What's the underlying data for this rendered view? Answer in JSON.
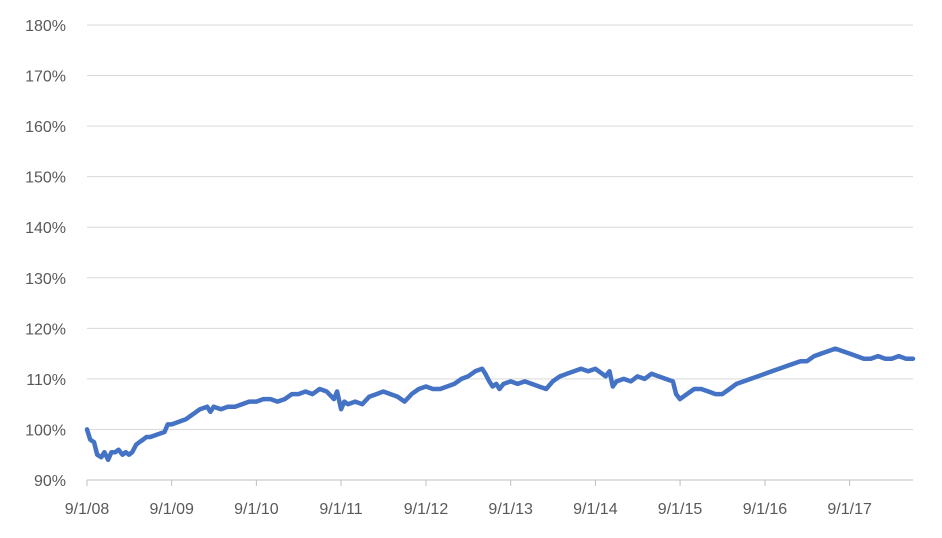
{
  "chart_data": {
    "type": "line",
    "title": "",
    "xlabel": "",
    "ylabel": "",
    "ylim": [
      90,
      180
    ],
    "grid": true,
    "legend": "none",
    "series_color": "#4472c4",
    "y_ticks": [
      "90%",
      "100%",
      "110%",
      "120%",
      "130%",
      "140%",
      "150%",
      "160%",
      "170%",
      "180%"
    ],
    "x_ticks": [
      "9/1/08",
      "9/1/09",
      "9/1/10",
      "9/1/11",
      "9/1/12",
      "9/1/13",
      "9/1/14",
      "9/1/15",
      "9/1/16",
      "9/1/17"
    ],
    "x_tick_dates": [
      "2008-09-01",
      "2009-09-01",
      "2010-09-01",
      "2011-09-01",
      "2012-09-01",
      "2013-09-01",
      "2014-09-01",
      "2015-09-01",
      "2016-09-01",
      "2017-09-01"
    ],
    "x_end": "2018-06-01",
    "series": [
      {
        "points": [
          [
            "2008-09-01",
            100.0
          ],
          [
            "2008-09-15",
            98.0
          ],
          [
            "2008-10-01",
            97.5
          ],
          [
            "2008-10-15",
            95.0
          ],
          [
            "2008-11-01",
            94.5
          ],
          [
            "2008-11-15",
            95.5
          ],
          [
            "2008-12-01",
            94.0
          ],
          [
            "2008-12-15",
            95.5
          ],
          [
            "2009-01-01",
            95.5
          ],
          [
            "2009-01-15",
            96.0
          ],
          [
            "2009-02-01",
            95.0
          ],
          [
            "2009-02-15",
            95.5
          ],
          [
            "2009-03-01",
            95.0
          ],
          [
            "2009-03-15",
            95.5
          ],
          [
            "2009-04-01",
            97.0
          ],
          [
            "2009-04-15",
            97.5
          ],
          [
            "2009-05-01",
            98.0
          ],
          [
            "2009-05-15",
            98.5
          ],
          [
            "2009-06-01",
            98.5
          ],
          [
            "2009-07-01",
            99.0
          ],
          [
            "2009-08-01",
            99.5
          ],
          [
            "2009-08-15",
            101.0
          ],
          [
            "2009-09-01",
            101.0
          ],
          [
            "2009-10-01",
            101.5
          ],
          [
            "2009-11-01",
            102.0
          ],
          [
            "2009-12-01",
            103.0
          ],
          [
            "2010-01-01",
            104.0
          ],
          [
            "2010-02-01",
            104.5
          ],
          [
            "2010-02-15",
            103.5
          ],
          [
            "2010-03-01",
            104.5
          ],
          [
            "2010-04-01",
            104.0
          ],
          [
            "2010-05-01",
            104.5
          ],
          [
            "2010-06-01",
            104.5
          ],
          [
            "2010-07-01",
            105.0
          ],
          [
            "2010-08-01",
            105.5
          ],
          [
            "2010-09-01",
            105.5
          ],
          [
            "2010-10-01",
            106.0
          ],
          [
            "2010-11-01",
            106.0
          ],
          [
            "2010-12-01",
            105.5
          ],
          [
            "2011-01-01",
            106.0
          ],
          [
            "2011-02-01",
            107.0
          ],
          [
            "2011-03-01",
            107.0
          ],
          [
            "2011-04-01",
            107.5
          ],
          [
            "2011-05-01",
            107.0
          ],
          [
            "2011-06-01",
            108.0
          ],
          [
            "2011-07-01",
            107.5
          ],
          [
            "2011-08-01",
            106.0
          ],
          [
            "2011-08-15",
            107.5
          ],
          [
            "2011-09-01",
            104.0
          ],
          [
            "2011-09-15",
            105.5
          ],
          [
            "2011-10-01",
            105.0
          ],
          [
            "2011-11-01",
            105.5
          ],
          [
            "2011-12-01",
            105.0
          ],
          [
            "2012-01-01",
            106.5
          ],
          [
            "2012-02-01",
            107.0
          ],
          [
            "2012-03-01",
            107.5
          ],
          [
            "2012-04-01",
            107.0
          ],
          [
            "2012-05-01",
            106.5
          ],
          [
            "2012-06-01",
            105.5
          ],
          [
            "2012-07-01",
            107.0
          ],
          [
            "2012-08-01",
            108.0
          ],
          [
            "2012-09-01",
            108.5
          ],
          [
            "2012-10-01",
            108.0
          ],
          [
            "2012-11-01",
            108.0
          ],
          [
            "2012-12-01",
            108.5
          ],
          [
            "2013-01-01",
            109.0
          ],
          [
            "2013-02-01",
            110.0
          ],
          [
            "2013-03-01",
            110.5
          ],
          [
            "2013-04-01",
            111.5
          ],
          [
            "2013-05-01",
            112.0
          ],
          [
            "2013-05-15",
            111.0
          ],
          [
            "2013-06-01",
            109.5
          ],
          [
            "2013-06-15",
            108.5
          ],
          [
            "2013-07-01",
            109.0
          ],
          [
            "2013-07-15",
            108.0
          ],
          [
            "2013-08-01",
            109.0
          ],
          [
            "2013-09-01",
            109.5
          ],
          [
            "2013-10-01",
            109.0
          ],
          [
            "2013-11-01",
            109.5
          ],
          [
            "2013-12-01",
            109.0
          ],
          [
            "2014-01-01",
            108.5
          ],
          [
            "2014-02-01",
            108.0
          ],
          [
            "2014-03-01",
            109.5
          ],
          [
            "2014-04-01",
            110.5
          ],
          [
            "2014-05-01",
            111.0
          ],
          [
            "2014-06-01",
            111.5
          ],
          [
            "2014-07-01",
            112.0
          ],
          [
            "2014-08-01",
            111.5
          ],
          [
            "2014-09-01",
            112.0
          ],
          [
            "2014-10-01",
            111.0
          ],
          [
            "2014-10-15",
            110.5
          ],
          [
            "2014-11-01",
            111.5
          ],
          [
            "2014-11-15",
            108.5
          ],
          [
            "2014-12-01",
            109.5
          ],
          [
            "2015-01-01",
            110.0
          ],
          [
            "2015-02-01",
            109.5
          ],
          [
            "2015-03-01",
            110.5
          ],
          [
            "2015-04-01",
            110.0
          ],
          [
            "2015-05-01",
            111.0
          ],
          [
            "2015-06-01",
            110.5
          ],
          [
            "2015-07-01",
            110.0
          ],
          [
            "2015-08-01",
            109.5
          ],
          [
            "2015-08-15",
            107.0
          ],
          [
            "2015-09-01",
            106.0
          ],
          [
            "2015-10-01",
            107.0
          ],
          [
            "2015-11-01",
            108.0
          ],
          [
            "2015-12-01",
            108.0
          ],
          [
            "2016-01-01",
            107.5
          ],
          [
            "2016-02-01",
            107.0
          ],
          [
            "2016-03-01",
            107.0
          ],
          [
            "2016-04-01",
            108.0
          ],
          [
            "2016-05-01",
            109.0
          ],
          [
            "2016-06-01",
            109.5
          ],
          [
            "2016-07-01",
            110.0
          ],
          [
            "2016-08-01",
            110.5
          ],
          [
            "2016-09-01",
            111.0
          ],
          [
            "2016-10-01",
            111.5
          ],
          [
            "2016-11-01",
            112.0
          ],
          [
            "2016-12-01",
            112.5
          ],
          [
            "2017-01-01",
            113.0
          ],
          [
            "2017-02-01",
            113.5
          ],
          [
            "2017-03-01",
            113.5
          ],
          [
            "2017-04-01",
            114.5
          ],
          [
            "2017-05-01",
            115.0
          ],
          [
            "2017-06-01",
            115.5
          ],
          [
            "2017-07-01",
            116.0
          ],
          [
            "2017-08-01",
            115.5
          ],
          [
            "2017-09-01",
            115.0
          ],
          [
            "2017-10-01",
            114.5
          ],
          [
            "2017-11-01",
            114.0
          ],
          [
            "2017-12-01",
            114.0
          ],
          [
            "2018-01-01",
            114.5
          ],
          [
            "2018-02-01",
            114.0
          ],
          [
            "2018-03-01",
            114.0
          ],
          [
            "2018-04-01",
            114.5
          ],
          [
            "2018-05-01",
            114.0
          ],
          [
            "2018-06-01",
            114.0
          ]
        ]
      }
    ]
  }
}
